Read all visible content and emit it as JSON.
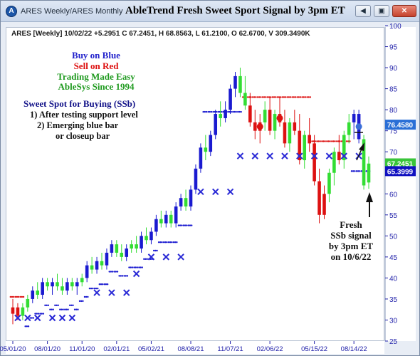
{
  "window": {
    "app_icon": "A",
    "tab_1": "ARES Weekly/ARES Monthly",
    "title": "AbleTrend Fresh Sweet Sport Signal by 3pm ET",
    "buttons": {
      "back_icon": "back-arrow-icon",
      "restore_icon": "restore-icon",
      "close_icon": "close-icon"
    }
  },
  "chart": {
    "info": "ARES [Weekly] 10/02/22 +5.2951 C 67.2451, H 68.8563, L 61.2100, O 62.6700, V 309.3490K",
    "legend": [
      {
        "text": "Buy on Blue",
        "color": "#2222cc"
      },
      {
        "text": "Sell on Red",
        "color": "#dd1111"
      },
      {
        "text": "Trading Made Easy",
        "color": "#1f9a1f"
      },
      {
        "text": "AbleSys Since 1994",
        "color": "#1f9a1f"
      }
    ],
    "note": {
      "title": "Sweet Spot for Buying (SSb)",
      "line1": "1) After testing support level",
      "line2": "2) Emerging blue bar",
      "line3": "or closeup bar"
    },
    "fresh": [
      "Fresh",
      "SSb signal",
      "by 3pm ET",
      "on 10/6/22"
    ],
    "price_tags": [
      {
        "value": "76.4580",
        "color": "#2a6fd6"
      },
      {
        "value": "67.2451",
        "color": "#39c43a"
      },
      {
        "value": "65.3999",
        "color": "#1010c0"
      }
    ],
    "colors": {
      "up": "#1a1ad0",
      "down": "#dd1111",
      "neutral": "#33dd33",
      "signal_x": "#2a2ad6",
      "axis": "#2222aa"
    }
  },
  "chart_data": {
    "type": "candlestick",
    "ylim": [
      25,
      100
    ],
    "y_ticks": [
      25,
      30,
      35,
      40,
      45,
      50,
      55,
      60,
      65,
      70,
      75,
      80,
      85,
      90,
      95,
      100
    ],
    "x_ticks": [
      "05/01/20",
      "08/01/20",
      "11/01/20",
      "02/01/21",
      "05/02/21",
      "08/08/21",
      "11/07/21",
      "02/06/22",
      "05/15/22",
      "08/14/22"
    ],
    "bars": [
      {
        "o": 31.5,
        "h": 35,
        "l": 29,
        "c": 33,
        "s": "d"
      },
      {
        "o": 33,
        "h": 34,
        "l": 30,
        "c": 31,
        "s": "d"
      },
      {
        "o": 31,
        "h": 34,
        "l": 30,
        "c": 33,
        "s": "n"
      },
      {
        "o": 33,
        "h": 36,
        "l": 32,
        "c": 35,
        "s": "n"
      },
      {
        "o": 35,
        "h": 38,
        "l": 34,
        "c": 37,
        "s": "u"
      },
      {
        "o": 37,
        "h": 39,
        "l": 35,
        "c": 36,
        "s": "n"
      },
      {
        "o": 36,
        "h": 40,
        "l": 35,
        "c": 39,
        "s": "u"
      },
      {
        "o": 39,
        "h": 40,
        "l": 37,
        "c": 38,
        "s": "n"
      },
      {
        "o": 38,
        "h": 40,
        "l": 36,
        "c": 39,
        "s": "u"
      },
      {
        "o": 39,
        "h": 41,
        "l": 37,
        "c": 38,
        "s": "n"
      },
      {
        "o": 38,
        "h": 40,
        "l": 36,
        "c": 37,
        "s": "n"
      },
      {
        "o": 37,
        "h": 40,
        "l": 36,
        "c": 39,
        "s": "u"
      },
      {
        "o": 39,
        "h": 40,
        "l": 37,
        "c": 38,
        "s": "n"
      },
      {
        "o": 38,
        "h": 40,
        "l": 36,
        "c": 39,
        "s": "u"
      },
      {
        "o": 39,
        "h": 41,
        "l": 38,
        "c": 40,
        "s": "n"
      },
      {
        "o": 40,
        "h": 44,
        "l": 39,
        "c": 43,
        "s": "u"
      },
      {
        "o": 43,
        "h": 45,
        "l": 41,
        "c": 42,
        "s": "n"
      },
      {
        "o": 42,
        "h": 45,
        "l": 41,
        "c": 44,
        "s": "u"
      },
      {
        "o": 44,
        "h": 46,
        "l": 42,
        "c": 43,
        "s": "n"
      },
      {
        "o": 43,
        "h": 47,
        "l": 42,
        "c": 46,
        "s": "u"
      },
      {
        "o": 46,
        "h": 49,
        "l": 45,
        "c": 48,
        "s": "u"
      },
      {
        "o": 48,
        "h": 49,
        "l": 45,
        "c": 46,
        "s": "n"
      },
      {
        "o": 46,
        "h": 48,
        "l": 44,
        "c": 45,
        "s": "n"
      },
      {
        "o": 45,
        "h": 48,
        "l": 44,
        "c": 47,
        "s": "u"
      },
      {
        "o": 47,
        "h": 49,
        "l": 46,
        "c": 48,
        "s": "n"
      },
      {
        "o": 48,
        "h": 50,
        "l": 46,
        "c": 47,
        "s": "n"
      },
      {
        "o": 47,
        "h": 51,
        "l": 46,
        "c": 50,
        "s": "u"
      },
      {
        "o": 50,
        "h": 52,
        "l": 48,
        "c": 49,
        "s": "n"
      },
      {
        "o": 49,
        "h": 52,
        "l": 48,
        "c": 51,
        "s": "u"
      },
      {
        "o": 51,
        "h": 55,
        "l": 50,
        "c": 54,
        "s": "u"
      },
      {
        "o": 54,
        "h": 56,
        "l": 52,
        "c": 53,
        "s": "n"
      },
      {
        "o": 53,
        "h": 56,
        "l": 52,
        "c": 55,
        "s": "u"
      },
      {
        "o": 55,
        "h": 56,
        "l": 52,
        "c": 53,
        "s": "n"
      },
      {
        "o": 53,
        "h": 58,
        "l": 52,
        "c": 57,
        "s": "u"
      },
      {
        "o": 57,
        "h": 60,
        "l": 56,
        "c": 59,
        "s": "u"
      },
      {
        "o": 59,
        "h": 61,
        "l": 56,
        "c": 57,
        "s": "n"
      },
      {
        "o": 57,
        "h": 62,
        "l": 56,
        "c": 61,
        "s": "u"
      },
      {
        "o": 61,
        "h": 67,
        "l": 60,
        "c": 66,
        "s": "u"
      },
      {
        "o": 66,
        "h": 72,
        "l": 65,
        "c": 71,
        "s": "u"
      },
      {
        "o": 71,
        "h": 74,
        "l": 68,
        "c": 70,
        "s": "n"
      },
      {
        "o": 70,
        "h": 75,
        "l": 69,
        "c": 74,
        "s": "u"
      },
      {
        "o": 74,
        "h": 80,
        "l": 73,
        "c": 79,
        "s": "u"
      },
      {
        "o": 79,
        "h": 82,
        "l": 76,
        "c": 78,
        "s": "n"
      },
      {
        "o": 78,
        "h": 82,
        "l": 77,
        "c": 80,
        "s": "u"
      },
      {
        "o": 80,
        "h": 86,
        "l": 79,
        "c": 85,
        "s": "u"
      },
      {
        "o": 85,
        "h": 89,
        "l": 83,
        "c": 88,
        "s": "u"
      },
      {
        "o": 88,
        "h": 90,
        "l": 83,
        "c": 84,
        "s": "n"
      },
      {
        "o": 84,
        "h": 88,
        "l": 80,
        "c": 81,
        "s": "n"
      },
      {
        "o": 81,
        "h": 84,
        "l": 76,
        "c": 77,
        "s": "d"
      },
      {
        "o": 77,
        "h": 80,
        "l": 73,
        "c": 75,
        "s": "d"
      },
      {
        "o": 75,
        "h": 79,
        "l": 72,
        "c": 77,
        "s": "d"
      },
      {
        "o": 77,
        "h": 82,
        "l": 75,
        "c": 80,
        "s": "n"
      },
      {
        "o": 80,
        "h": 83,
        "l": 74,
        "c": 75,
        "s": "d"
      },
      {
        "o": 75,
        "h": 80,
        "l": 73,
        "c": 79,
        "s": "n"
      },
      {
        "o": 79,
        "h": 83,
        "l": 76,
        "c": 77,
        "s": "d"
      },
      {
        "o": 77,
        "h": 80,
        "l": 71,
        "c": 72,
        "s": "d"
      },
      {
        "o": 72,
        "h": 78,
        "l": 70,
        "c": 77,
        "s": "n"
      },
      {
        "o": 77,
        "h": 80,
        "l": 74,
        "c": 75,
        "s": "d"
      },
      {
        "o": 75,
        "h": 79,
        "l": 67,
        "c": 68,
        "s": "d"
      },
      {
        "o": 68,
        "h": 75,
        "l": 66,
        "c": 74,
        "s": "n"
      },
      {
        "o": 74,
        "h": 78,
        "l": 70,
        "c": 72,
        "s": "d"
      },
      {
        "o": 72,
        "h": 74,
        "l": 62,
        "c": 63,
        "s": "d"
      },
      {
        "o": 63,
        "h": 66,
        "l": 53,
        "c": 55,
        "s": "d"
      },
      {
        "o": 55,
        "h": 62,
        "l": 54,
        "c": 60,
        "s": "d"
      },
      {
        "o": 60,
        "h": 66,
        "l": 58,
        "c": 65,
        "s": "n"
      },
      {
        "o": 65,
        "h": 71,
        "l": 62,
        "c": 70,
        "s": "n"
      },
      {
        "o": 70,
        "h": 74,
        "l": 67,
        "c": 68,
        "s": "d"
      },
      {
        "o": 68,
        "h": 75,
        "l": 66,
        "c": 74,
        "s": "n"
      },
      {
        "o": 74,
        "h": 79,
        "l": 72,
        "c": 77,
        "s": "n"
      },
      {
        "o": 77,
        "h": 80,
        "l": 73,
        "c": 79,
        "s": "u"
      },
      {
        "o": 79,
        "h": 80,
        "l": 72,
        "c": 73,
        "s": "u"
      },
      {
        "o": 73,
        "h": 74,
        "l": 61,
        "c": 62,
        "s": "n"
      },
      {
        "o": 62.7,
        "h": 68.9,
        "l": 61.2,
        "c": 67.2,
        "s": "n"
      }
    ],
    "stop_levels": [
      {
        "from": 0,
        "to": 2,
        "v": 35.5,
        "color": "red"
      },
      {
        "from": 3,
        "to": 36,
        "v": "ramp",
        "color": "blue"
      },
      {
        "from": 39,
        "to": 46,
        "v": 79.5,
        "color": "blue"
      },
      {
        "from": 47,
        "to": 60,
        "v": 83,
        "color": "red"
      },
      {
        "from": 61,
        "to": 68,
        "v": 72.5,
        "color": "red"
      },
      {
        "from": 69,
        "to": 72,
        "v": 65.4,
        "color": "blue"
      }
    ],
    "x_marks": [
      {
        "i": 1,
        "v": 30.5
      },
      {
        "i": 3,
        "v": 30.5
      },
      {
        "i": 5,
        "v": 30.5
      },
      {
        "i": 8,
        "v": 30.5
      },
      {
        "i": 10,
        "v": 30.5
      },
      {
        "i": 12,
        "v": 30.5
      },
      {
        "i": 17,
        "v": 36.5
      },
      {
        "i": 20,
        "v": 36.5
      },
      {
        "i": 23,
        "v": 36.5
      },
      {
        "i": 25,
        "v": 41
      },
      {
        "i": 28,
        "v": 45
      },
      {
        "i": 31,
        "v": 45
      },
      {
        "i": 34,
        "v": 45
      },
      {
        "i": 38,
        "v": 60.5
      },
      {
        "i": 41,
        "v": 60.5
      },
      {
        "i": 44,
        "v": 60.5
      },
      {
        "i": 46,
        "v": 69
      },
      {
        "i": 49,
        "v": 69
      },
      {
        "i": 52,
        "v": 69
      },
      {
        "i": 55,
        "v": 69
      },
      {
        "i": 58,
        "v": 69
      },
      {
        "i": 61,
        "v": 69
      },
      {
        "i": 64,
        "v": 69
      },
      {
        "i": 67,
        "v": 69
      },
      {
        "i": 70,
        "v": 69
      }
    ]
  }
}
